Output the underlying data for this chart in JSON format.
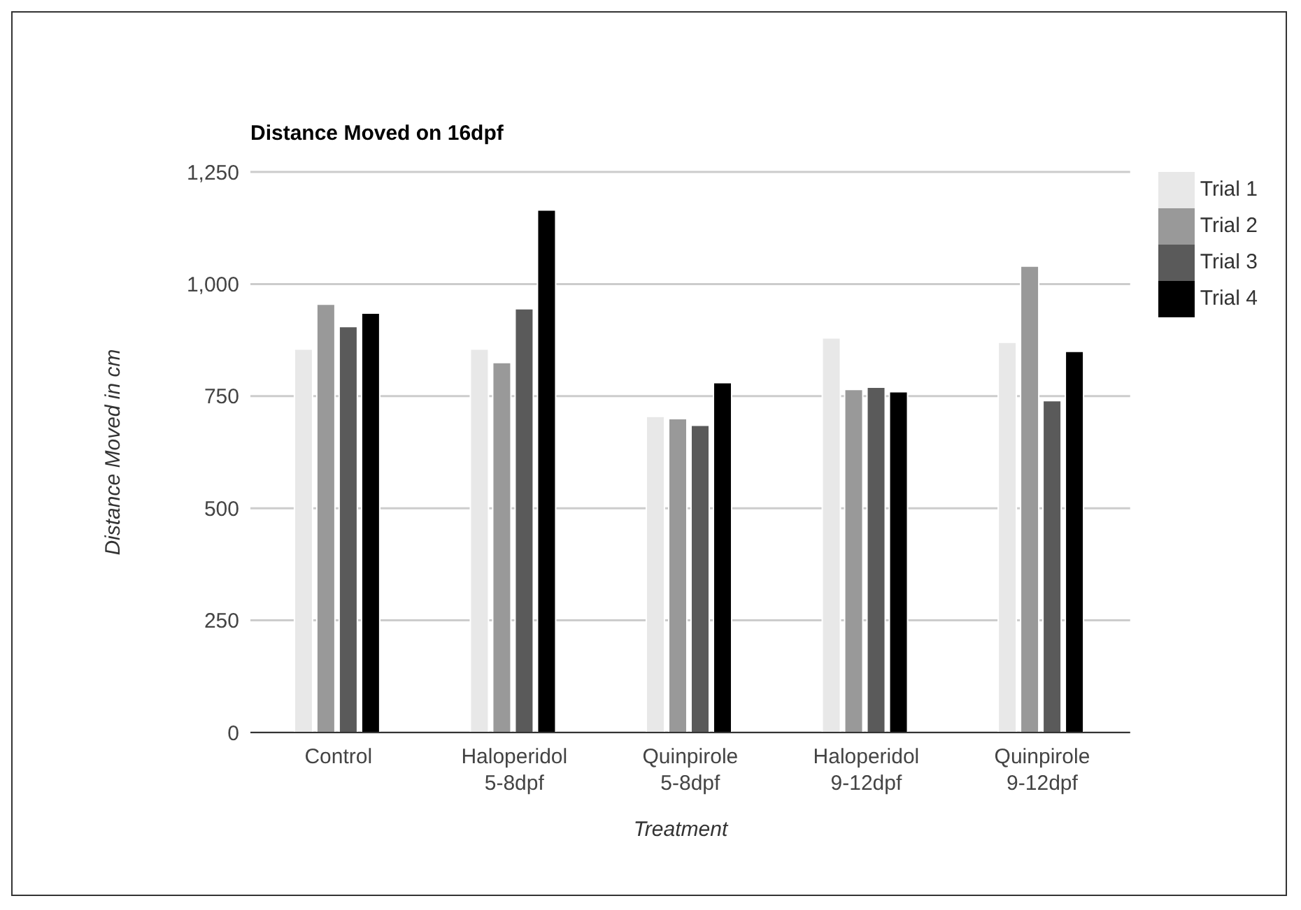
{
  "chart_data": {
    "type": "bar",
    "title": "Distance Moved on 16dpf",
    "xlabel": "Treatment",
    "ylabel": "Distance Moved in cm",
    "categories": [
      "Control",
      "Haloperidol 5-8dpf",
      "Quinpirole 5-8dpf",
      "Haloperidol 9-12dpf",
      "Quinpirole 9-12dpf"
    ],
    "series": [
      {
        "name": "Trial 1",
        "color": "#e8e8e8",
        "values": [
          855,
          855,
          705,
          880,
          870
        ]
      },
      {
        "name": "Trial 2",
        "color": "#999999",
        "values": [
          955,
          825,
          700,
          765,
          1040
        ]
      },
      {
        "name": "Trial 3",
        "color": "#5a5a5a",
        "values": [
          905,
          945,
          685,
          770,
          740
        ]
      },
      {
        "name": "Trial 4",
        "color": "#000000",
        "values": [
          935,
          1165,
          780,
          760,
          850
        ]
      }
    ],
    "ylim": [
      0,
      1250
    ],
    "yticks": [
      {
        "value": 0,
        "label": "0"
      },
      {
        "value": 250,
        "label": "250"
      },
      {
        "value": 500,
        "label": "500"
      },
      {
        "value": 750,
        "label": "750"
      },
      {
        "value": 1000,
        "label": "1,000"
      },
      {
        "value": 1250,
        "label": "1,250"
      }
    ],
    "grid": "y",
    "legend": "right"
  }
}
